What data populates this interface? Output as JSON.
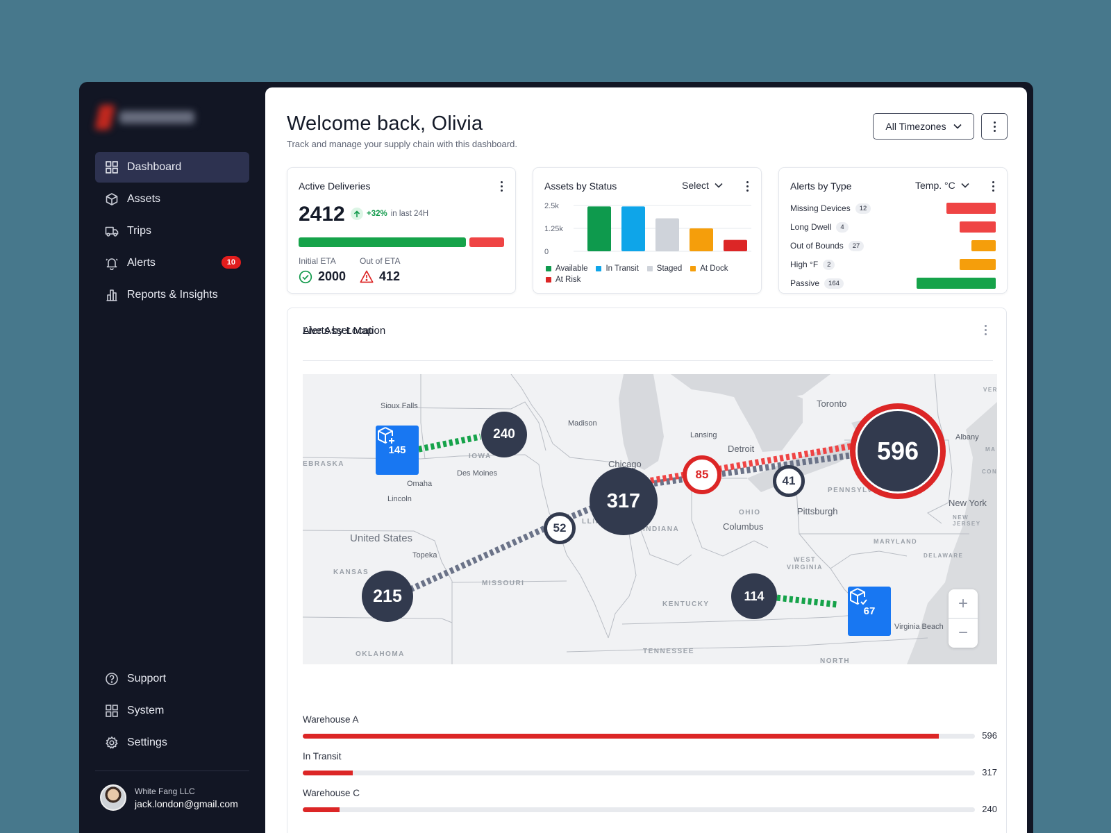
{
  "sidebar": {
    "nav": [
      {
        "label": "Dashboard",
        "icon": "grid-icon",
        "active": true
      },
      {
        "label": "Assets",
        "icon": "cube-icon"
      },
      {
        "label": "Trips",
        "icon": "truck-icon"
      },
      {
        "label": "Alerts",
        "icon": "bell-icon",
        "badge": "10"
      },
      {
        "label": "Reports & Insights",
        "icon": "bar-chart-icon"
      }
    ],
    "bottom": [
      {
        "label": "Support",
        "icon": "help-circle-icon"
      },
      {
        "label": "System",
        "icon": "grid-icon"
      },
      {
        "label": "Settings",
        "icon": "gear-icon"
      }
    ],
    "user": {
      "org": "White Fang LLC",
      "email": "jack.london@gmail.com"
    }
  },
  "header": {
    "title": "Welcome back, Olivia",
    "subtitle": "Track and manage your supply chain with this dashboard.",
    "timezone": "All Timezones"
  },
  "active_deliveries": {
    "title": "Active Deliveries",
    "total": "2412",
    "change": "+32%",
    "change_suffix": "in last 24H",
    "initial_label": "Initial ETA",
    "initial_value": "2000",
    "out_label": "Out of ETA",
    "out_value": "412",
    "initial_fraction": 0.829
  },
  "assets_by_status": {
    "title": "Assets by Status",
    "select": "Select",
    "chart_data": {
      "type": "bar",
      "categories": [
        "Available",
        "In Transit",
        "Staged",
        "At Dock",
        "At Risk"
      ],
      "values": [
        2450,
        2450,
        1800,
        1250,
        620
      ],
      "colors": [
        "#0e9a4d",
        "#0ea5e9",
        "#cfd3da",
        "#f59e0b",
        "#dc2626"
      ],
      "yticks": [
        "2.5k",
        "1.25k",
        "0"
      ],
      "ylim": [
        0,
        2500
      ]
    }
  },
  "alerts_by_type": {
    "title": "Alerts by Type",
    "select": "Temp. °C",
    "items": [
      {
        "label": "Missing Devices",
        "count": "12",
        "fraction": 0.62,
        "color": "#ef4444"
      },
      {
        "label": "Long Dwell",
        "count": "4",
        "fraction": 0.46,
        "color": "#ef4444"
      },
      {
        "label": "Out of Bounds",
        "count": "27",
        "fraction": 0.31,
        "color": "#f59e0b"
      },
      {
        "label": "High °F",
        "count": "2",
        "fraction": 0.46,
        "color": "#f59e0b"
      },
      {
        "label": "Passive",
        "count": "164",
        "fraction": 1.0,
        "color": "#16a34a"
      }
    ]
  },
  "map": {
    "title": "Live Asset Map",
    "labels": {
      "sioux_falls": "Sioux Falls",
      "madison": "Madison",
      "lansing": "Lansing",
      "detroit": "Detroit",
      "toronto": "Toronto",
      "albany": "Albany",
      "chicago": "Chicago",
      "omaha": "Omaha",
      "des_moines": "Des Moines",
      "lincoln": "Lincoln",
      "iowa": "IOWA",
      "nebraska": "EBRASKA",
      "united_states": "United States",
      "topeka": "Topeka",
      "kansas": "KANSAS",
      "missouri": "MISSOURI",
      "illinois": "LLINOIS",
      "indiana": "INDIANA",
      "ohio": "OHIO",
      "columbus": "Columbus",
      "pittsburgh": "Pittsburgh",
      "pennsylvania": "PENNSYLV",
      "new_york": "New York",
      "new_jersey": "NEW JERSEY",
      "maryland": "MARYLAND",
      "delaware": "DELAWARE",
      "west_virginia": "WEST VIRGINIA",
      "kentucky": "KENTUCKY",
      "tennessee": "TENNESSEE",
      "oklahoma": "OKLAHOMA",
      "virginia_beach": "Virginia Beach",
      "north": "NORTH",
      "ver": "VER",
      "ma": "MA",
      "conn": "CONN"
    },
    "clusters": [
      {
        "value": "240"
      },
      {
        "value": "317"
      },
      {
        "value": "215"
      },
      {
        "value": "114"
      },
      {
        "value": "596"
      }
    ],
    "rings": [
      {
        "value": "85"
      },
      {
        "value": "41"
      },
      {
        "value": "52"
      }
    ],
    "boxes": [
      {
        "value": "145"
      },
      {
        "value": "67"
      }
    ],
    "zoom_in": "+",
    "zoom_out": "−"
  },
  "alerts_by_location": {
    "title": "Alerts by Location",
    "max": 596,
    "rows": [
      {
        "name": "Warehouse A",
        "value": 596
      },
      {
        "name": "In Transit",
        "value": 317
      },
      {
        "name": "Warehouse C",
        "value": 240
      }
    ]
  },
  "colors": {
    "accent_red": "#dc2626",
    "accent_green": "#16a34a",
    "sidebar_bg": "#121624",
    "box_blue": "#1877f2"
  }
}
